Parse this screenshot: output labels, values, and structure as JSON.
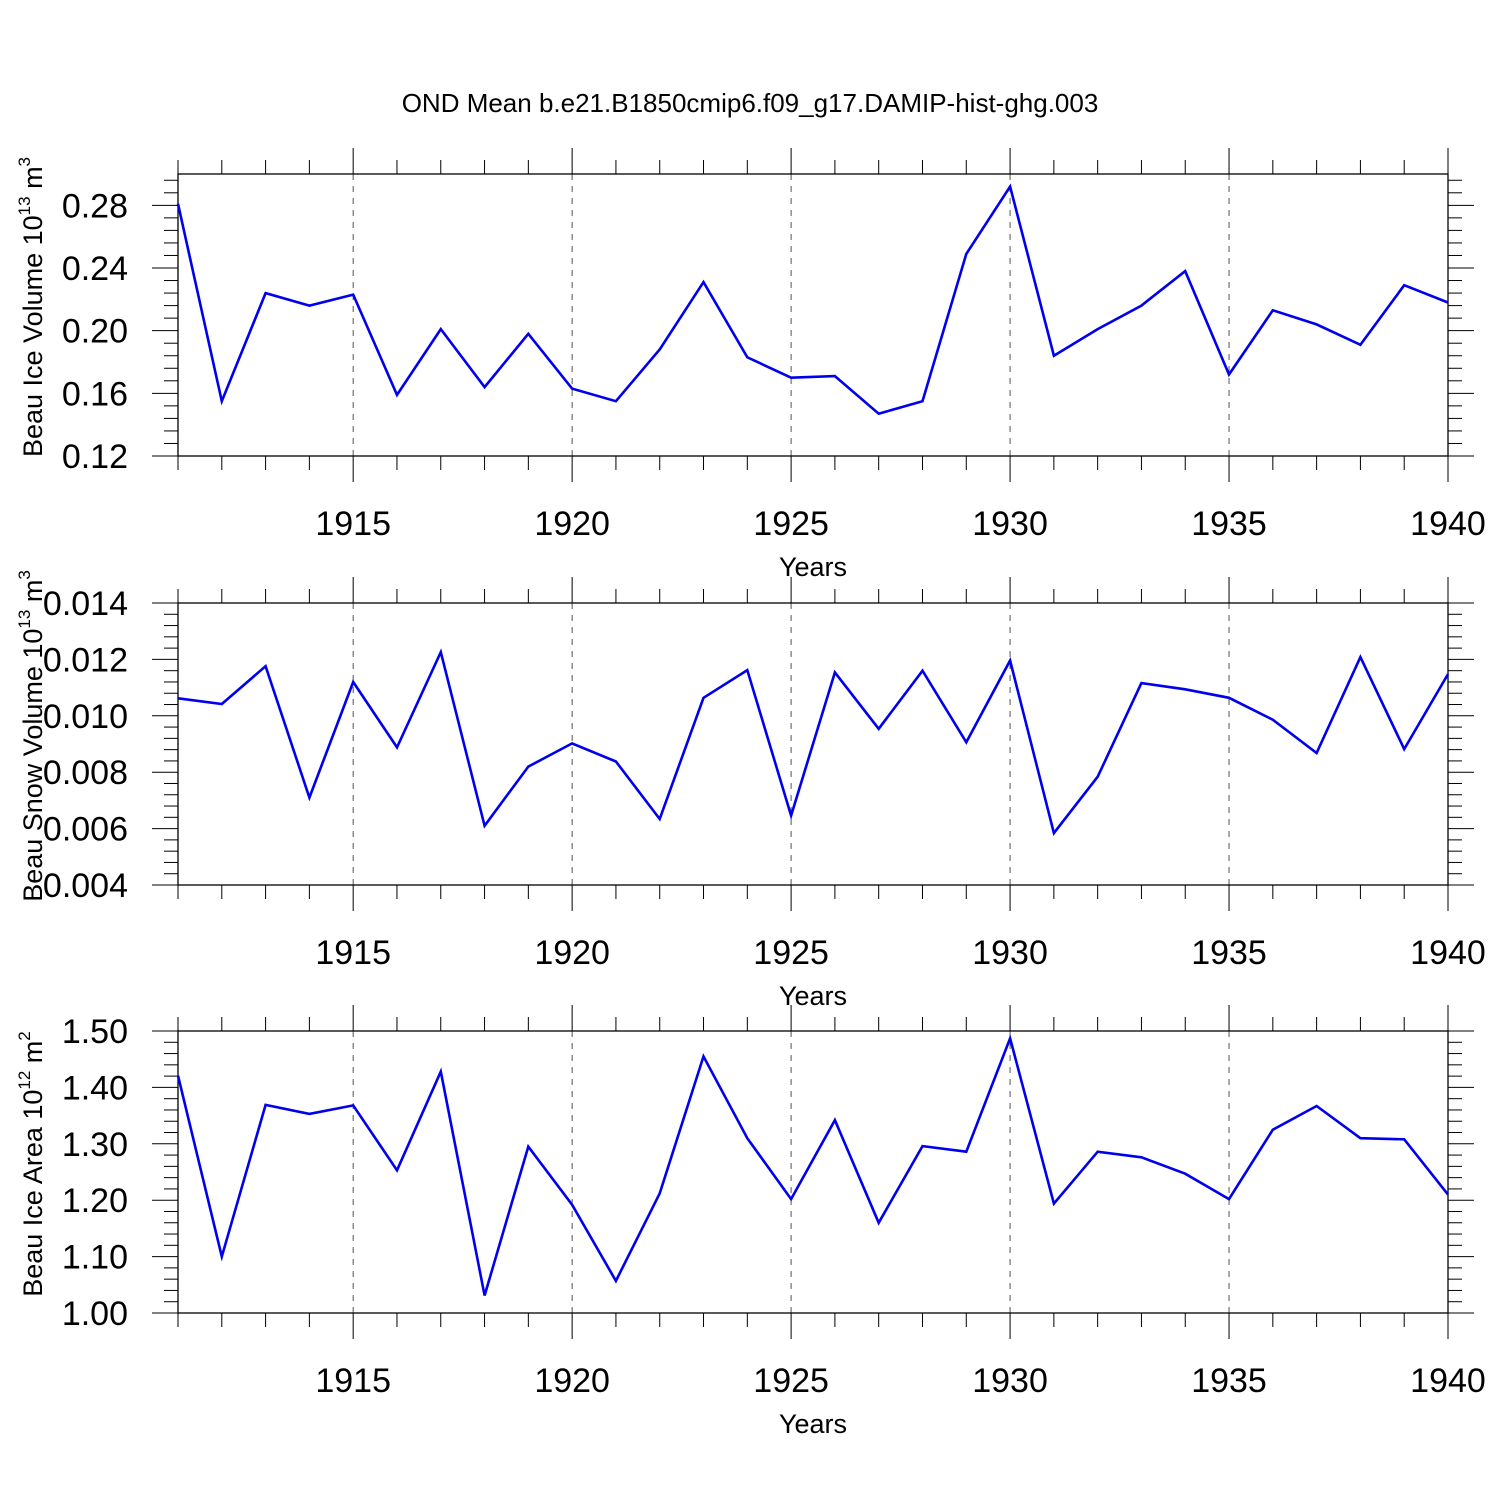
{
  "figure_title": "OND Mean b.e21.B1850cmip6.f09_g17.DAMIP-hist-ghg.003",
  "colors": {
    "line": "#0000ee",
    "axis": "#000000",
    "grid": "#555555"
  },
  "chart_data": [
    {
      "type": "line",
      "xlabel": "Years",
      "ylabel": {
        "text": "Beau Ice Volume 10",
        "exp": "13",
        "unit": " m",
        "unit_exp": "3"
      },
      "xlim": [
        1911,
        1940
      ],
      "ylim": [
        0.12,
        0.3
      ],
      "xticks": [
        "1915",
        "1920",
        "1925",
        "1930",
        "1935",
        "1940"
      ],
      "yticks": [
        "0.12",
        "0.16",
        "0.20",
        "0.24",
        "0.28"
      ],
      "grid": "vertical dashed at major x ticks",
      "x": [
        1911,
        1912,
        1913,
        1914,
        1915,
        1916,
        1917,
        1918,
        1919,
        1920,
        1921,
        1922,
        1923,
        1924,
        1925,
        1926,
        1927,
        1928,
        1929,
        1930,
        1931,
        1932,
        1933,
        1934,
        1935,
        1936,
        1937,
        1938,
        1939,
        1940
      ],
      "values": [
        0.281,
        0.155,
        0.224,
        0.216,
        0.223,
        0.159,
        0.201,
        0.164,
        0.198,
        0.163,
        0.155,
        0.188,
        0.231,
        0.183,
        0.17,
        0.171,
        0.147,
        0.155,
        0.249,
        0.292,
        0.184,
        0.201,
        0.216,
        0.238,
        0.172,
        0.213,
        0.204,
        0.191,
        0.229,
        0.218
      ]
    },
    {
      "type": "line",
      "xlabel": "Years",
      "ylabel": {
        "text": "Beau Snow Volume 10",
        "exp": "13",
        "unit": " m",
        "unit_exp": "3"
      },
      "xlim": [
        1911,
        1940
      ],
      "ylim": [
        0.004,
        0.014
      ],
      "xticks": [
        "1915",
        "1920",
        "1925",
        "1930",
        "1935",
        "1940"
      ],
      "yticks": [
        "0.004",
        "0.006",
        "0.008",
        "0.010",
        "0.012",
        "0.014"
      ],
      "grid": "vertical dashed at major x ticks",
      "x": [
        1911,
        1912,
        1913,
        1914,
        1915,
        1916,
        1917,
        1918,
        1919,
        1920,
        1921,
        1922,
        1923,
        1924,
        1925,
        1926,
        1927,
        1928,
        1929,
        1930,
        1931,
        1932,
        1933,
        1934,
        1935,
        1936,
        1937,
        1938,
        1939,
        1940
      ],
      "values": [
        0.01062,
        0.01042,
        0.01176,
        0.0071,
        0.0112,
        0.00888,
        0.01226,
        0.0061,
        0.0082,
        0.00902,
        0.00838,
        0.00634,
        0.01064,
        0.01162,
        0.00646,
        0.01154,
        0.00954,
        0.0116,
        0.00906,
        0.01196,
        0.00584,
        0.00784,
        0.01116,
        0.01094,
        0.01064,
        0.00986,
        0.00868,
        0.01208,
        0.00882,
        0.01148
      ]
    },
    {
      "type": "line",
      "xlabel": "Years",
      "ylabel": {
        "text": "Beau Ice Area 10",
        "exp": "12",
        "unit": " m",
        "unit_exp": "2"
      },
      "xlim": [
        1911,
        1940
      ],
      "ylim": [
        1.0,
        1.5
      ],
      "xticks": [
        "1915",
        "1920",
        "1925",
        "1930",
        "1935",
        "1940"
      ],
      "yticks": [
        "1.00",
        "1.10",
        "1.20",
        "1.30",
        "1.40",
        "1.50"
      ],
      "grid": "vertical dashed at major x ticks",
      "x": [
        1911,
        1912,
        1913,
        1914,
        1915,
        1916,
        1917,
        1918,
        1919,
        1920,
        1921,
        1922,
        1923,
        1924,
        1925,
        1926,
        1927,
        1928,
        1929,
        1930,
        1931,
        1932,
        1933,
        1934,
        1935,
        1936,
        1937,
        1938,
        1939,
        1940
      ],
      "values": [
        1.421,
        1.1,
        1.369,
        1.353,
        1.368,
        1.253,
        1.428,
        1.031,
        1.295,
        1.192,
        1.057,
        1.212,
        1.455,
        1.31,
        1.202,
        1.342,
        1.16,
        1.296,
        1.286,
        1.487,
        1.194,
        1.286,
        1.276,
        1.247,
        1.202,
        1.325,
        1.367,
        1.31,
        1.308,
        1.21
      ]
    }
  ]
}
